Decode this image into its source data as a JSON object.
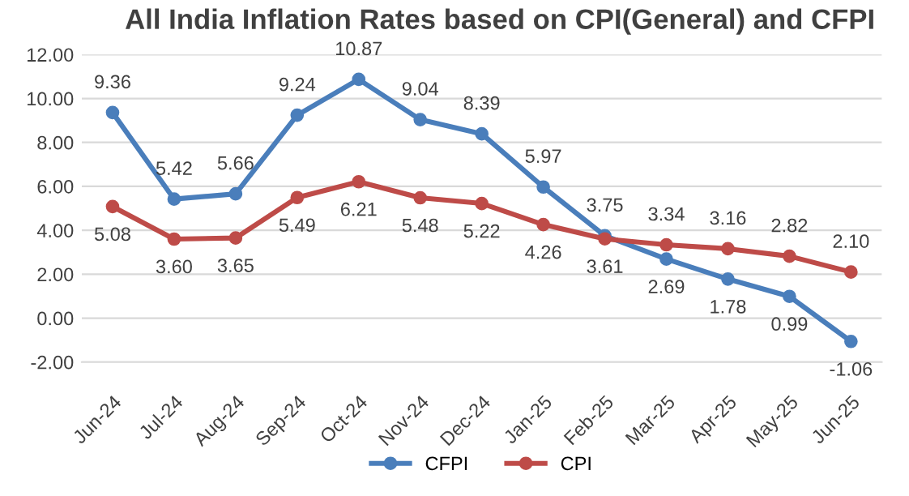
{
  "chart_data": {
    "type": "line",
    "title": "All India Inflation Rates based on CPI(General) and CFPI",
    "categories": [
      "Jun-24",
      "Jul-24",
      "Aug-24",
      "Sep-24",
      "Oct-24",
      "Nov-24",
      "Dec-24",
      "Jan-25",
      "Feb-25",
      "Mar-25",
      "Apr-25",
      "May-25",
      "Jun-25"
    ],
    "series": [
      {
        "name": "CFPI",
        "color": "#4a7ebb",
        "values": [
          9.36,
          5.42,
          5.66,
          9.24,
          10.87,
          9.04,
          8.39,
          5.97,
          3.75,
          2.69,
          1.78,
          0.99,
          -1.06
        ],
        "value_labels": [
          "9.36",
          "5.42",
          "5.66",
          "9.24",
          "10.87",
          "9.04",
          "8.39",
          "5.97",
          "3.75",
          "2.69",
          "1.78",
          "0.99",
          "-1.06"
        ]
      },
      {
        "name": "CPI",
        "color": "#be4b48",
        "values": [
          5.08,
          3.6,
          3.65,
          5.49,
          6.21,
          5.48,
          5.22,
          4.26,
          3.61,
          3.34,
          3.16,
          2.82,
          2.1
        ],
        "value_labels": [
          "5.08",
          "3.60",
          "3.65",
          "5.49",
          "6.21",
          "5.48",
          "5.22",
          "4.26",
          "3.61",
          "3.34",
          "3.16",
          "2.82",
          "2.10"
        ]
      }
    ],
    "ylim": [
      -2,
      12
    ],
    "yticks": [
      {
        "value": -2,
        "label": "-2.00"
      },
      {
        "value": 0,
        "label": "0.00"
      },
      {
        "value": 2,
        "label": "2.00"
      },
      {
        "value": 4,
        "label": "4.00"
      },
      {
        "value": 6,
        "label": "6.00"
      },
      {
        "value": 8,
        "label": "8.00"
      },
      {
        "value": 10,
        "label": "10.00"
      },
      {
        "value": 12,
        "label": "12.00"
      }
    ],
    "grid": "y",
    "legend": "bottom",
    "marker": "circle",
    "line_style": "solid"
  }
}
